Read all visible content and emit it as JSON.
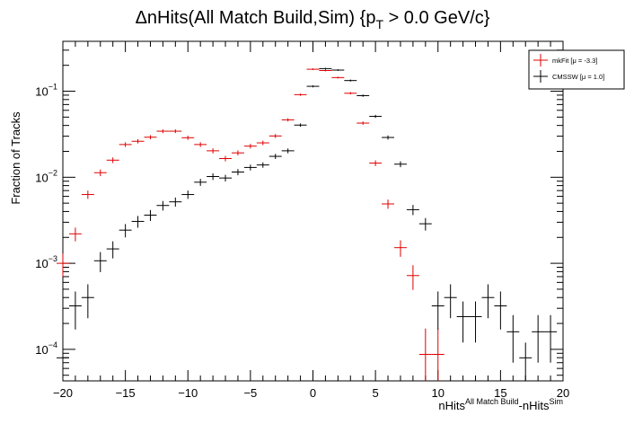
{
  "chart_data": {
    "type": "scatter",
    "title": "ΔnHits(All Match Build,Sim) {p_T > 0.0 GeV/c}",
    "title_parts": {
      "main": "ΔnHits(All Match Build,Sim) {p",
      "sub": "T",
      "tail": " > 0.0 GeV/c}"
    },
    "xlabel": "nHits^{All Match Build}-nHits^{Sim}",
    "xlabel_parts": {
      "a": "nHits",
      "sup1": "All Match Build",
      "b": "-nHits",
      "sup2": "Sim"
    },
    "ylabel": "Fraction of Tracks",
    "xlim": [
      -20,
      20
    ],
    "ylim": [
      4.3e-05,
      0.38
    ],
    "yscale": "log",
    "grid": false,
    "legend_position": "top-right",
    "xticks": [
      "−20",
      "−15",
      "−10",
      "−5",
      "0",
      "5",
      "10",
      "15",
      "20"
    ],
    "xtick_values": [
      -20,
      -15,
      -10,
      -5,
      0,
      5,
      10,
      15,
      20
    ],
    "yticks": [
      {
        "base": "10",
        "exp": "−4",
        "value": 0.0001
      },
      {
        "base": "10",
        "exp": "−3",
        "value": 0.001
      },
      {
        "base": "10",
        "exp": "−2",
        "value": 0.01
      },
      {
        "base": "10",
        "exp": "−1",
        "value": 0.1
      }
    ],
    "series": [
      {
        "name": "mkFit  [μ = -3.3]",
        "color": "#e00000",
        "points": [
          [
            -20,
            0.001,
            0.0003
          ],
          [
            -19,
            0.0022,
            0.0004
          ],
          [
            -18,
            0.0063,
            0.0007
          ],
          [
            -17,
            0.0113,
            0.001
          ],
          [
            -16,
            0.0158,
            0.0012
          ],
          [
            -15,
            0.024,
            0.0015
          ],
          [
            -14,
            0.0262,
            0.0015
          ],
          [
            -13,
            0.0292,
            0.0016
          ],
          [
            -12,
            0.0343,
            0.0017
          ],
          [
            -11,
            0.0343,
            0.0017
          ],
          [
            -10,
            0.0288,
            0.0016
          ],
          [
            -9,
            0.024,
            0.0015
          ],
          [
            -8,
            0.0203,
            0.0014
          ],
          [
            -7,
            0.0165,
            0.0012
          ],
          [
            -6,
            0.0192,
            0.0013
          ],
          [
            -5,
            0.023,
            0.0014
          ],
          [
            -4,
            0.0251,
            0.0015
          ],
          [
            -3,
            0.0302,
            0.0016
          ],
          [
            -2,
            0.0465,
            0.002
          ],
          [
            -1,
            0.0912,
            0.0028
          ],
          [
            0,
            0.18,
            0.004
          ],
          [
            1,
            0.174,
            0.004
          ],
          [
            2,
            0.144,
            0.0036
          ],
          [
            3,
            0.0947,
            0.0029
          ],
          [
            4,
            0.0426,
            0.0019
          ],
          [
            5,
            0.0146,
            0.0011
          ],
          [
            6,
            0.0049,
            0.0006
          ],
          [
            7,
            0.00152,
            0.00033
          ],
          [
            8,
            0.00072,
            0.00023
          ],
          [
            9,
            8.74e-05,
            8.7e-05
          ],
          [
            10,
            8.74e-05,
            8.7e-05
          ]
        ]
      },
      {
        "name": "CMSSW  [μ =  1.0]",
        "color": "#000000",
        "points": [
          [
            -20,
            7.97e-05,
            4e-05
          ],
          [
            -19,
            0.00032,
            0.00015
          ],
          [
            -18,
            0.0004,
            0.00017
          ],
          [
            -17,
            0.00107,
            0.00028
          ],
          [
            -16,
            0.00147,
            0.00033
          ],
          [
            -15,
            0.00243,
            0.00043
          ],
          [
            -14,
            0.00307,
            0.00048
          ],
          [
            -13,
            0.00363,
            0.00053
          ],
          [
            -12,
            0.0047,
            0.0006
          ],
          [
            -11,
            0.00518,
            0.00063
          ],
          [
            -10,
            0.0063,
            0.0007
          ],
          [
            -9,
            0.00876,
            0.00082
          ],
          [
            -8,
            0.0102,
            0.0009
          ],
          [
            -7,
            0.0098,
            0.00088
          ],
          [
            -6,
            0.0115,
            0.00095
          ],
          [
            -5,
            0.013,
            0.001
          ],
          [
            -4,
            0.0139,
            0.001
          ],
          [
            -3,
            0.0175,
            0.0012
          ],
          [
            -2,
            0.0203,
            0.0013
          ],
          [
            -1,
            0.0404,
            0.0018
          ],
          [
            0,
            0.114,
            0.003
          ],
          [
            1,
            0.183,
            0.004
          ],
          [
            2,
            0.176,
            0.004
          ],
          [
            3,
            0.133,
            0.0035
          ],
          [
            4,
            0.0888,
            0.0028
          ],
          [
            5,
            0.051,
            0.0021
          ],
          [
            6,
            0.029,
            0.0016
          ],
          [
            7,
            0.0142,
            0.0011
          ],
          [
            8,
            0.0042,
            0.00057
          ],
          [
            9,
            0.00288,
            0.00048
          ],
          [
            10,
            0.00032,
            0.00015
          ],
          [
            11,
            0.0004,
            0.00017
          ],
          [
            12,
            0.00024,
            0.00012
          ],
          [
            13,
            0.00024,
            0.00012
          ],
          [
            14,
            0.0004,
            0.00017
          ],
          [
            15,
            0.00032,
            0.00015
          ],
          [
            16,
            0.00016,
            9e-05
          ],
          [
            17,
            7.97e-05,
            4e-05
          ],
          [
            18,
            0.00016,
            9e-05
          ],
          [
            19,
            0.00016,
            9e-05
          ]
        ]
      }
    ]
  },
  "legend": {
    "entries": [
      {
        "label": "mkFit  [μ = -3.3]",
        "color": "#e00000"
      },
      {
        "label": "CMSSW  [μ =  1.0]",
        "color": "#000000"
      }
    ]
  }
}
